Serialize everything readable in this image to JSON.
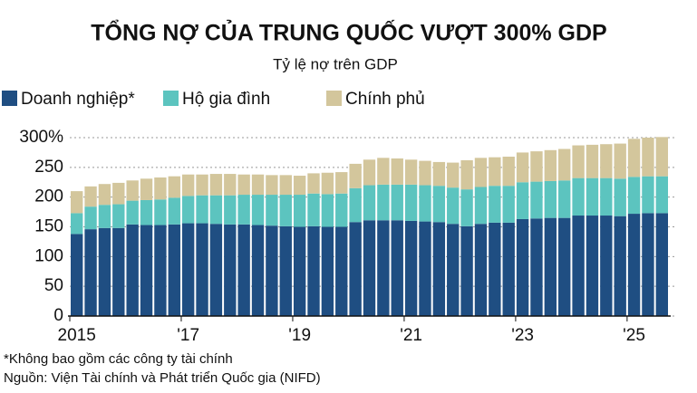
{
  "chart_data": {
    "type": "stacked_bar",
    "title": "TỔNG NỢ CỦA TRUNG QUỐC VƯỢT 300% GDP",
    "subtitle": "Tỷ lệ nợ trên GDP",
    "categories": [
      "2015",
      null,
      null,
      null,
      null,
      null,
      null,
      null,
      "'17",
      null,
      null,
      null,
      null,
      null,
      null,
      null,
      "'19",
      null,
      null,
      null,
      null,
      null,
      null,
      null,
      "'21",
      null,
      null,
      null,
      null,
      null,
      null,
      null,
      "'23",
      null,
      null,
      null,
      null,
      null,
      null,
      null,
      "'25",
      null,
      null
    ],
    "series": [
      {
        "name": "Doanh nghiệp*",
        "color": "#1f4e82",
        "values": [
          138,
          146,
          148,
          148,
          154,
          153,
          153,
          154,
          156,
          156,
          155,
          154,
          154,
          153,
          152,
          151,
          150,
          151,
          150,
          150,
          158,
          161,
          161,
          161,
          160,
          159,
          158,
          155,
          151,
          155,
          157,
          157,
          163,
          164,
          165,
          165,
          169,
          169,
          169,
          168,
          172,
          173,
          173
        ]
      },
      {
        "name": "Hộ gia đình",
        "color": "#5cc4bf",
        "values": [
          35,
          38,
          39,
          40,
          40,
          42,
          43,
          45,
          46,
          47,
          48,
          49,
          50,
          51,
          52,
          53,
          54,
          55,
          55,
          56,
          57,
          59,
          60,
          60,
          61,
          61,
          61,
          61,
          62,
          62,
          62,
          62,
          62,
          62,
          62,
          63,
          63,
          63,
          63,
          63,
          62,
          62,
          62
        ]
      },
      {
        "name": "Chính phủ",
        "color": "#d3c69c",
        "values": [
          37,
          34,
          35,
          36,
          34,
          36,
          37,
          36,
          36,
          35,
          36,
          36,
          34,
          34,
          33,
          33,
          32,
          34,
          36,
          36,
          41,
          43,
          45,
          44,
          42,
          41,
          40,
          42,
          49,
          49,
          48,
          49,
          50,
          51,
          52,
          53,
          55,
          56,
          57,
          59,
          64,
          65,
          66
        ]
      }
    ],
    "ylim": [
      0,
      300
    ],
    "yticks": [
      0,
      50,
      100,
      150,
      200,
      250,
      {
        "value": 300,
        "label": "300%"
      }
    ],
    "grid": true,
    "notes": [
      "*Không bao gồm các công ty tài chính",
      "Nguồn: Viện Tài chính và Phát triển Quốc gia (NIFD)"
    ]
  }
}
